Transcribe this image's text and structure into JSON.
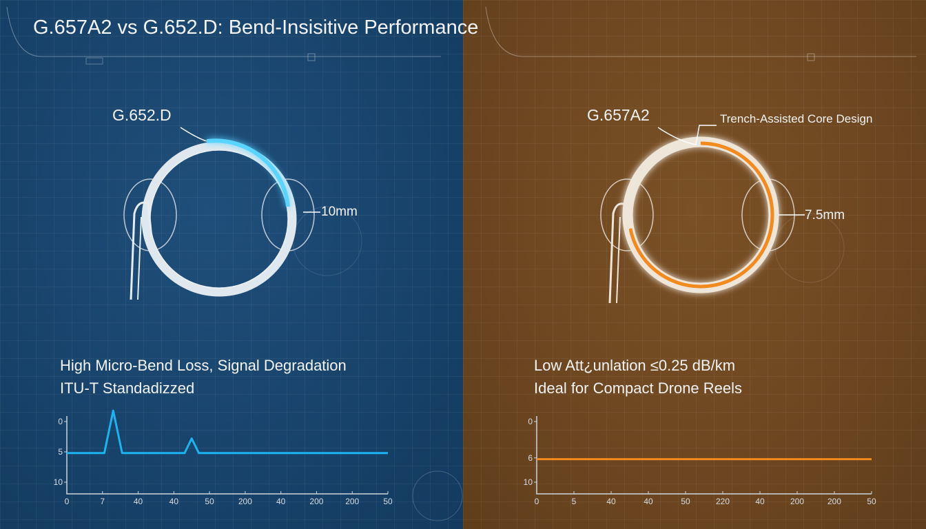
{
  "title": "G.657A2 vs G.652.D: Bend-Insisitive Performance",
  "left": {
    "fiber_label": "G.652.D",
    "radius_label": "10mm",
    "desc_line1": "High Micro-Bend Loss, Signal Degradation",
    "desc_line2": "ITU-T Standadizzed",
    "accent": "#1cb4f0"
  },
  "right": {
    "fiber_label": "G.657A2",
    "design_label": "Trench-Assisted Core Design",
    "radius_label": "7.5mm",
    "desc_line1": "Low Att¿unlation ≤0.25 dB/km",
    "desc_line2": "Ideal for Compact Drone Reels",
    "accent": "#f28a1e"
  },
  "chart_data": [
    {
      "type": "line",
      "x_tick_labels": [
        "0",
        "7",
        "40",
        "40",
        "50",
        "200",
        "40",
        "200",
        "200",
        "50"
      ],
      "y_tick_labels": [
        "0",
        "5",
        "10"
      ],
      "y_ticks": [
        0,
        5,
        10
      ],
      "ylim": [
        -2.5,
        12
      ],
      "y_inverted": true,
      "color": "#1cb4f0",
      "points": [
        [
          0,
          5.2
        ],
        [
          1.05,
          5.2
        ],
        [
          1.3,
          -1.8
        ],
        [
          1.55,
          5.2
        ],
        [
          3.3,
          5.2
        ],
        [
          3.5,
          2.8
        ],
        [
          3.7,
          5.2
        ],
        [
          9,
          5.2
        ]
      ]
    },
    {
      "type": "line",
      "x_tick_labels": [
        "0",
        "5",
        "40",
        "40",
        "50",
        "220",
        "40",
        "200",
        "200",
        "50"
      ],
      "y_tick_labels": [
        "0",
        "6",
        "10"
      ],
      "y_ticks": [
        0,
        6,
        10
      ],
      "ylim": [
        -2.5,
        12
      ],
      "y_inverted": true,
      "color": "#f28a1e",
      "points": [
        [
          0,
          6.2
        ],
        [
          9,
          6.2
        ]
      ]
    }
  ]
}
